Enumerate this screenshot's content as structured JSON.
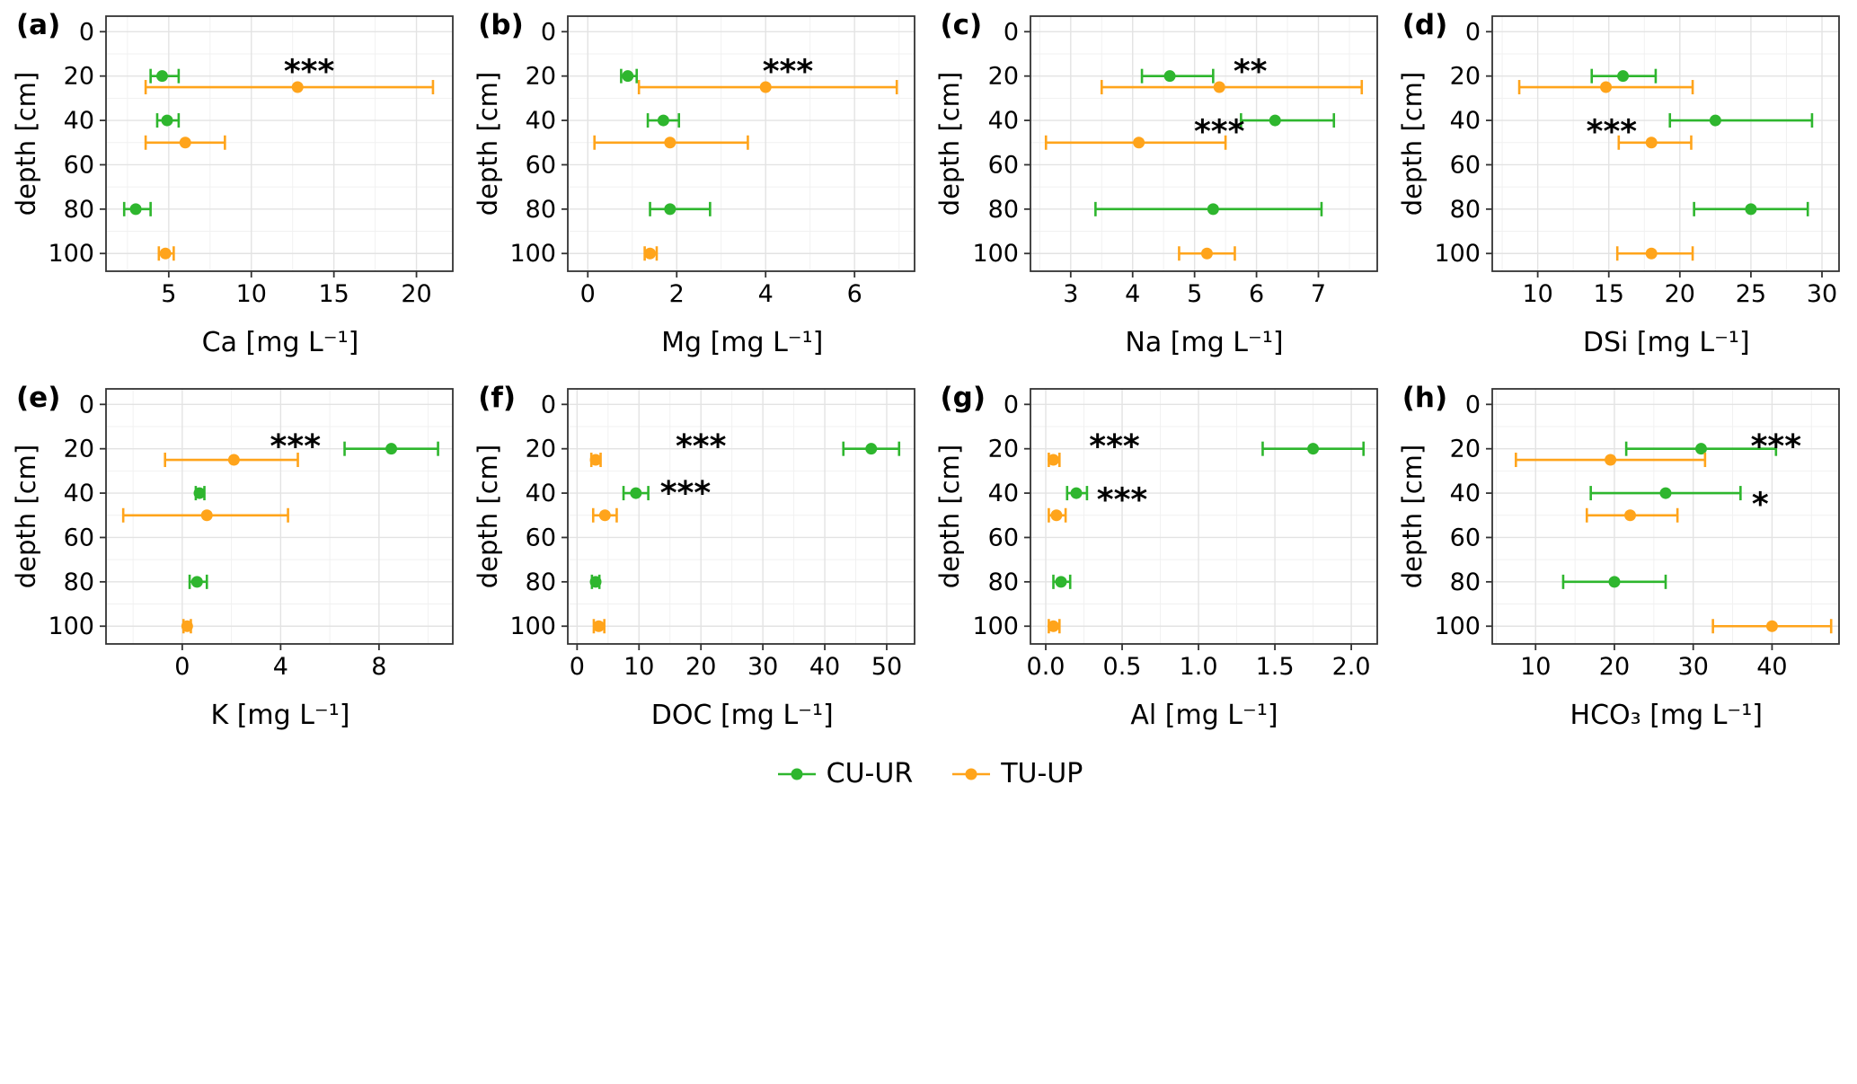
{
  "chart_data": {
    "type": "pointrange",
    "description": "Depth profiles of solute concentrations with horizontal error bars, 8 panels, two groups",
    "ylabel": "depth [cm]",
    "ylim": [
      -7,
      108
    ],
    "yticks": [
      0,
      20,
      40,
      60,
      80,
      100
    ],
    "ytick_labels": [
      "0",
      "20",
      "40",
      "60",
      "80",
      "100"
    ],
    "grid": true,
    "colors": {
      "grid_major": "#e3e3e3",
      "grid_minor": "#f1f1f1",
      "axis": "#333333",
      "text": "#000000"
    },
    "legend": {
      "position": "bottom",
      "items": [
        {
          "label": "CU-UR",
          "color": "#2eb62e"
        },
        {
          "label": "TU-UP",
          "color": "#ffa41b"
        }
      ]
    },
    "panels": [
      {
        "label": "(a)",
        "xlabel": "Ca [mg L⁻¹]",
        "xlim": [
          1.2,
          22.2
        ],
        "xticks": [
          5,
          10,
          15,
          20
        ],
        "xtick_labels": [
          "5",
          "10",
          "15",
          "20"
        ],
        "series": [
          {
            "name": "CU-UR",
            "points": [
              {
                "depth": 20,
                "x": 4.6,
                "xmin": 3.9,
                "xmax": 5.6
              },
              {
                "depth": 40,
                "x": 4.9,
                "xmin": 4.3,
                "xmax": 5.6
              },
              {
                "depth": 80,
                "x": 3.0,
                "xmin": 2.3,
                "xmax": 3.9
              }
            ]
          },
          {
            "name": "TU-UP",
            "points": [
              {
                "depth": 25,
                "x": 12.8,
                "xmin": 3.6,
                "xmax": 21.0
              },
              {
                "depth": 50,
                "x": 6.0,
                "xmin": 3.6,
                "xmax": 8.4
              },
              {
                "depth": 100,
                "x": 4.8,
                "xmin": 4.4,
                "xmax": 5.3
              }
            ]
          }
        ],
        "annotations": [
          {
            "x": 13.5,
            "depth": 18,
            "text": "***"
          }
        ]
      },
      {
        "label": "(b)",
        "xlabel": "Mg [mg L⁻¹]",
        "xlim": [
          -0.45,
          7.35
        ],
        "xticks": [
          0,
          2,
          4,
          6
        ],
        "xtick_labels": [
          "0",
          "2",
          "4",
          "6"
        ],
        "series": [
          {
            "name": "CU-UR",
            "points": [
              {
                "depth": 20,
                "x": 0.9,
                "xmin": 0.75,
                "xmax": 1.1
              },
              {
                "depth": 40,
                "x": 1.7,
                "xmin": 1.35,
                "xmax": 2.05
              },
              {
                "depth": 80,
                "x": 1.85,
                "xmin": 1.4,
                "xmax": 2.75
              }
            ]
          },
          {
            "name": "TU-UP",
            "points": [
              {
                "depth": 25,
                "x": 4.0,
                "xmin": 1.15,
                "xmax": 6.95
              },
              {
                "depth": 50,
                "x": 1.85,
                "xmin": 0.15,
                "xmax": 3.6
              },
              {
                "depth": 100,
                "x": 1.4,
                "xmin": 1.28,
                "xmax": 1.55
              }
            ]
          }
        ],
        "annotations": [
          {
            "x": 4.5,
            "depth": 18,
            "text": "***"
          }
        ]
      },
      {
        "label": "(c)",
        "xlabel": "Na [mg L⁻¹]",
        "xlim": [
          2.35,
          7.95
        ],
        "xticks": [
          3,
          4,
          5,
          6,
          7
        ],
        "xtick_labels": [
          "3",
          "4",
          "5",
          "6",
          "7"
        ],
        "series": [
          {
            "name": "CU-UR",
            "points": [
              {
                "depth": 20,
                "x": 4.6,
                "xmin": 4.15,
                "xmax": 5.3
              },
              {
                "depth": 40,
                "x": 6.3,
                "xmin": 5.75,
                "xmax": 7.25
              },
              {
                "depth": 80,
                "x": 5.3,
                "xmin": 3.4,
                "xmax": 7.05
              }
            ]
          },
          {
            "name": "TU-UP",
            "points": [
              {
                "depth": 25,
                "x": 5.4,
                "xmin": 3.5,
                "xmax": 7.7
              },
              {
                "depth": 50,
                "x": 4.1,
                "xmin": 2.6,
                "xmax": 5.5
              },
              {
                "depth": 100,
                "x": 5.2,
                "xmin": 4.75,
                "xmax": 5.65
              }
            ]
          }
        ],
        "annotations": [
          {
            "x": 5.9,
            "depth": 18,
            "text": "**"
          },
          {
            "x": 5.4,
            "depth": 45,
            "text": "***"
          }
        ]
      },
      {
        "label": "(d)",
        "xlabel": "DSi [mg L⁻¹]",
        "xlim": [
          6.8,
          31.2
        ],
        "xticks": [
          10,
          15,
          20,
          25,
          30
        ],
        "xtick_labels": [
          "10",
          "15",
          "20",
          "25",
          "30"
        ],
        "series": [
          {
            "name": "CU-UR",
            "points": [
              {
                "depth": 20,
                "x": 16.0,
                "xmin": 13.8,
                "xmax": 18.3
              },
              {
                "depth": 40,
                "x": 22.5,
                "xmin": 19.3,
                "xmax": 29.3
              },
              {
                "depth": 80,
                "x": 25.0,
                "xmin": 21.0,
                "xmax": 29.0
              }
            ]
          },
          {
            "name": "TU-UP",
            "points": [
              {
                "depth": 25,
                "x": 14.8,
                "xmin": 8.7,
                "xmax": 20.9
              },
              {
                "depth": 50,
                "x": 18.0,
                "xmin": 15.7,
                "xmax": 20.8
              },
              {
                "depth": 100,
                "x": 18.0,
                "xmin": 15.6,
                "xmax": 20.9
              }
            ]
          }
        ],
        "annotations": [
          {
            "x": 15.2,
            "depth": 45,
            "text": "***"
          }
        ]
      },
      {
        "label": "(e)",
        "xlabel": "K [mg L⁻¹]",
        "xlim": [
          -3.1,
          11.0
        ],
        "xticks": [
          0,
          4,
          8
        ],
        "xtick_labels": [
          "0",
          "4",
          "8"
        ],
        "series": [
          {
            "name": "CU-UR",
            "points": [
              {
                "depth": 20,
                "x": 8.5,
                "xmin": 6.6,
                "xmax": 10.4
              },
              {
                "depth": 40,
                "x": 0.7,
                "xmin": 0.55,
                "xmax": 0.9
              },
              {
                "depth": 80,
                "x": 0.6,
                "xmin": 0.3,
                "xmax": 1.0
              }
            ]
          },
          {
            "name": "TU-UP",
            "points": [
              {
                "depth": 25,
                "x": 2.1,
                "xmin": -0.7,
                "xmax": 4.7
              },
              {
                "depth": 50,
                "x": 1.0,
                "xmin": -2.4,
                "xmax": 4.3
              },
              {
                "depth": 100,
                "x": 0.2,
                "xmin": 0.05,
                "xmax": 0.35
              }
            ]
          }
        ],
        "annotations": [
          {
            "x": 4.6,
            "depth": 19,
            "text": "***"
          }
        ]
      },
      {
        "label": "(f)",
        "xlabel": "DOC [mg L⁻¹]",
        "xlim": [
          -1.5,
          54.5
        ],
        "xticks": [
          0,
          10,
          20,
          30,
          40,
          50
        ],
        "xtick_labels": [
          "0",
          "10",
          "20",
          "30",
          "40",
          "50"
        ],
        "series": [
          {
            "name": "CU-UR",
            "points": [
              {
                "depth": 20,
                "x": 47.5,
                "xmin": 43.0,
                "xmax": 52.0
              },
              {
                "depth": 40,
                "x": 9.5,
                "xmin": 7.5,
                "xmax": 11.5
              },
              {
                "depth": 80,
                "x": 3.0,
                "xmin": 2.4,
                "xmax": 3.6
              }
            ]
          },
          {
            "name": "TU-UP",
            "points": [
              {
                "depth": 25,
                "x": 3.0,
                "xmin": 2.3,
                "xmax": 3.8
              },
              {
                "depth": 50,
                "x": 4.5,
                "xmin": 2.6,
                "xmax": 6.4
              },
              {
                "depth": 100,
                "x": 3.5,
                "xmin": 2.7,
                "xmax": 4.4
              }
            ]
          }
        ],
        "annotations": [
          {
            "x": 20.0,
            "depth": 19,
            "text": "***"
          },
          {
            "x": 17.5,
            "depth": 40,
            "text": "***"
          }
        ]
      },
      {
        "label": "(g)",
        "xlabel": "Al [mg L⁻¹]",
        "xlim": [
          -0.1,
          2.17
        ],
        "xticks": [
          0,
          0.5,
          1,
          1.5,
          2
        ],
        "xtick_labels": [
          "0.0",
          "0.5",
          "1.0",
          "1.5",
          "2.0"
        ],
        "series": [
          {
            "name": "CU-UR",
            "points": [
              {
                "depth": 20,
                "x": 1.75,
                "xmin": 1.42,
                "xmax": 2.08
              },
              {
                "depth": 40,
                "x": 0.2,
                "xmin": 0.14,
                "xmax": 0.27
              },
              {
                "depth": 80,
                "x": 0.1,
                "xmin": 0.05,
                "xmax": 0.16
              }
            ]
          },
          {
            "name": "TU-UP",
            "points": [
              {
                "depth": 25,
                "x": 0.05,
                "xmin": 0.02,
                "xmax": 0.09
              },
              {
                "depth": 50,
                "x": 0.07,
                "xmin": 0.02,
                "xmax": 0.13
              },
              {
                "depth": 100,
                "x": 0.05,
                "xmin": 0.02,
                "xmax": 0.09
              }
            ]
          }
        ],
        "annotations": [
          {
            "x": 0.45,
            "depth": 19,
            "text": "***"
          },
          {
            "x": 0.5,
            "depth": 43,
            "text": "***"
          }
        ]
      },
      {
        "label": "(h)",
        "xlabel": "HCO₃ [mg L⁻¹]",
        "xlim": [
          4.5,
          48.5
        ],
        "xticks": [
          10,
          20,
          30,
          40
        ],
        "xtick_labels": [
          "10",
          "20",
          "30",
          "40"
        ],
        "series": [
          {
            "name": "CU-UR",
            "points": [
              {
                "depth": 20,
                "x": 31.0,
                "xmin": 21.5,
                "xmax": 40.5
              },
              {
                "depth": 40,
                "x": 26.5,
                "xmin": 17.0,
                "xmax": 36.0
              },
              {
                "depth": 80,
                "x": 20.0,
                "xmin": 13.5,
                "xmax": 26.5
              }
            ]
          },
          {
            "name": "TU-UP",
            "points": [
              {
                "depth": 25,
                "x": 19.5,
                "xmin": 7.5,
                "xmax": 31.5
              },
              {
                "depth": 50,
                "x": 22.0,
                "xmin": 16.5,
                "xmax": 28.0
              },
              {
                "depth": 100,
                "x": 40.0,
                "xmin": 32.5,
                "xmax": 47.5
              }
            ]
          }
        ],
        "annotations": [
          {
            "x": 40.5,
            "depth": 19,
            "text": "***"
          },
          {
            "x": 38.5,
            "depth": 45,
            "text": "*"
          }
        ]
      }
    ]
  }
}
